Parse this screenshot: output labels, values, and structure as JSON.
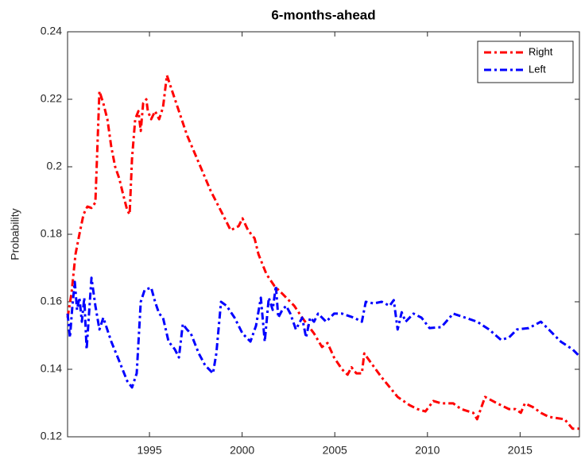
{
  "chart_data": {
    "type": "line",
    "title": "6-months-ahead",
    "y_label": "Probability",
    "xlim": [
      1990.58,
      2018.2
    ],
    "ylim": [
      0.12,
      0.24
    ],
    "xticks": [
      1995,
      2000,
      2005,
      2010,
      2015
    ],
    "yticks": [
      0.12,
      0.14,
      0.16,
      0.18,
      0.2,
      0.22,
      0.24
    ],
    "grid": false,
    "legend": "northeast",
    "series": [
      {
        "name": "Right",
        "color": "#ff0000",
        "x": [
          1990.58,
          1990.79,
          1991.01,
          1991.22,
          1991.44,
          1991.65,
          1991.87,
          1992.08,
          1992.3,
          1992.51,
          1992.73,
          1992.94,
          1993.15,
          1993.37,
          1993.58,
          1993.8,
          1993.93,
          1994.06,
          1994.23,
          1994.4,
          1994.53,
          1994.66,
          1994.83,
          1994.91,
          1995.09,
          1995.3,
          1995.52,
          1995.73,
          1995.94,
          1996.16,
          1996.59,
          1997.02,
          1997.66,
          1998.3,
          1998.95,
          1999.38,
          1999.81,
          2000.02,
          2000.32,
          2000.67,
          2000.88,
          2001.31,
          2001.74,
          2002.17,
          2002.81,
          2003.24,
          2003.88,
          2004.31,
          2004.61,
          2004.96,
          2005.39,
          2005.69,
          2005.9,
          2006.16,
          2006.46,
          2006.59,
          2006.89,
          2007.53,
          2008.39,
          2009.03,
          2009.46,
          2009.89,
          2010.32,
          2010.75,
          2011.39,
          2011.82,
          2012.47,
          2012.68,
          2013.11,
          2013.76,
          2014.4,
          2014.74,
          2015.04,
          2015.26,
          2015.69,
          2016.12,
          2016.55,
          2017.4,
          2017.83,
          2018.18
        ],
        "values": [
          0.1553,
          0.1624,
          0.1741,
          0.18,
          0.1859,
          0.1882,
          0.1878,
          0.1894,
          0.2224,
          0.2188,
          0.2141,
          0.2059,
          0.2,
          0.1965,
          0.1918,
          0.1871,
          0.1859,
          0.2024,
          0.2141,
          0.2165,
          0.2106,
          0.2188,
          0.22,
          0.2165,
          0.2141,
          0.2165,
          0.2141,
          0.2176,
          0.2271,
          0.2235,
          0.2165,
          0.2094,
          0.2012,
          0.1929,
          0.1859,
          0.1812,
          0.1824,
          0.1847,
          0.1812,
          0.1788,
          0.1741,
          0.1682,
          0.1647,
          0.1624,
          0.1588,
          0.1553,
          0.1506,
          0.1466,
          0.1478,
          0.1435,
          0.14,
          0.1384,
          0.1406,
          0.1388,
          0.1388,
          0.1447,
          0.1424,
          0.1376,
          0.1318,
          0.1294,
          0.1282,
          0.1275,
          0.1306,
          0.1299,
          0.1299,
          0.1282,
          0.1271,
          0.1252,
          0.1318,
          0.1299,
          0.1282,
          0.1282,
          0.1271,
          0.1299,
          0.1288,
          0.1271,
          0.1259,
          0.1252,
          0.1224,
          0.1224
        ]
      },
      {
        "name": "Left",
        "color": "#0000ff",
        "x": [
          1990.58,
          1990.71,
          1990.84,
          1990.97,
          1991.09,
          1991.22,
          1991.35,
          1991.48,
          1991.61,
          1991.74,
          1991.87,
          1992.08,
          1992.3,
          1992.51,
          1992.94,
          1993.37,
          1993.8,
          1994.06,
          1994.31,
          1994.53,
          1994.74,
          1995.09,
          1995.3,
          1995.52,
          1995.73,
          1996.03,
          1996.37,
          1996.59,
          1996.8,
          1997.02,
          1997.23,
          1997.66,
          1998.0,
          1998.43,
          1998.61,
          1998.86,
          1999.16,
          1999.59,
          2000.02,
          2000.45,
          2000.75,
          2001.01,
          2001.22,
          2001.44,
          2001.65,
          2001.82,
          2001.95,
          2002.17,
          2002.38,
          2002.6,
          2002.9,
          2003.24,
          2003.45,
          2003.67,
          2003.88,
          2004.1,
          2004.53,
          2004.96,
          2005.39,
          2006.03,
          2006.46,
          2006.67,
          2007.1,
          2007.53,
          2007.96,
          2008.18,
          2008.39,
          2008.61,
          2008.82,
          2009.25,
          2009.68,
          2010.11,
          2010.75,
          2011.39,
          2012.04,
          2012.68,
          2013.33,
          2013.97,
          2014.4,
          2014.83,
          2015.47,
          2016.12,
          2016.55,
          2017.19,
          2017.83,
          2018.18
        ],
        "values": [
          0.1565,
          0.1494,
          0.1588,
          0.1659,
          0.1576,
          0.1612,
          0.1541,
          0.1612,
          0.1459,
          0.1565,
          0.1671,
          0.1588,
          0.1518,
          0.1553,
          0.1482,
          0.1424,
          0.1365,
          0.1346,
          0.1388,
          0.16,
          0.1635,
          0.1642,
          0.16,
          0.1565,
          0.1553,
          0.1482,
          0.1459,
          0.1435,
          0.1534,
          0.1518,
          0.1506,
          0.1447,
          0.1412,
          0.1388,
          0.1447,
          0.16,
          0.1588,
          0.1553,
          0.1506,
          0.1482,
          0.1529,
          0.1612,
          0.1482,
          0.1612,
          0.1576,
          0.1647,
          0.1553,
          0.1576,
          0.1588,
          0.1565,
          0.1518,
          0.1553,
          0.1494,
          0.1553,
          0.1541,
          0.1565,
          0.1541,
          0.1565,
          0.1565,
          0.1553,
          0.1541,
          0.16,
          0.1595,
          0.16,
          0.1588,
          0.1605,
          0.1518,
          0.1569,
          0.1541,
          0.1565,
          0.1553,
          0.1522,
          0.1525,
          0.1565,
          0.1553,
          0.1541,
          0.1518,
          0.1487,
          0.1494,
          0.1518,
          0.1522,
          0.1541,
          0.1518,
          0.1482,
          0.1459,
          0.144
        ]
      }
    ]
  }
}
